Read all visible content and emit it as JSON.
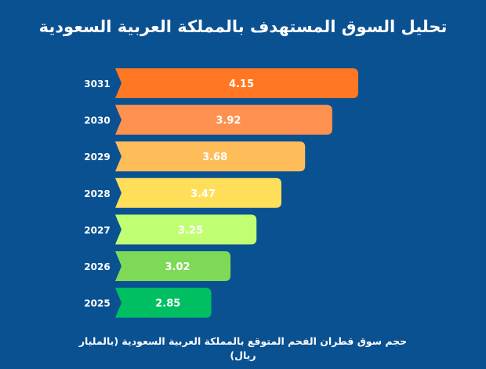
{
  "chart_data": {
    "type": "bar",
    "orientation": "horizontal",
    "title": "تحليل السوق المستهدف بالمملكة العربية السعودية",
    "categories": [
      "3031",
      "2030",
      "2029",
      "2028",
      "2027",
      "2026",
      "2025"
    ],
    "values": [
      4.15,
      3.92,
      3.68,
      3.47,
      3.25,
      3.02,
      2.85
    ],
    "value_labels": [
      "4.15",
      "3.92",
      "3.68",
      "3.47",
      "3.25",
      "3.02",
      "2.85"
    ],
    "colors": [
      "#ff7722",
      "#ff9150",
      "#ffbd59",
      "#ffde59",
      "#c1ff72",
      "#7ed957",
      "#00bf63"
    ],
    "caption": "حجم سوق  قطران الفحم المتوقع بالمملكة العربية السعودية (بالمليار ريال)",
    "xlim": [
      0,
      4.15
    ],
    "grid": false,
    "legend": "none"
  }
}
